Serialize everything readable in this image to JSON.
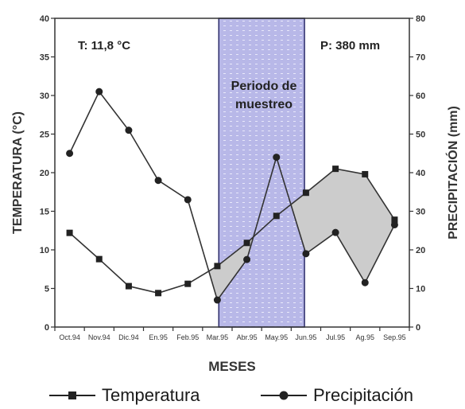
{
  "chart_data": {
    "type": "line",
    "title": "",
    "xlabel": "MESES",
    "ylabel_left": "TEMPERATURA (°C)",
    "ylabel_right": "PRECIPITACIÓN (mm)",
    "categories": [
      "Oct.94",
      "Nov.94",
      "Dic.94",
      "En.95",
      "Feb.95",
      "Mar.95",
      "Abr.95",
      "May.95",
      "Jun.95",
      "Jul.95",
      "Ag.95",
      "Sep.95"
    ],
    "ylim_left": [
      0,
      40
    ],
    "yticks_left": [
      "0",
      "5",
      "10",
      "15",
      "20",
      "25",
      "30",
      "35",
      "40"
    ],
    "ylim_right": [
      0,
      80
    ],
    "yticks_right": [
      "0",
      "10",
      "20",
      "30",
      "40",
      "50",
      "60",
      "70",
      "80"
    ],
    "series": [
      {
        "name": "Temperatura",
        "axis": "left",
        "marker": "square",
        "values": [
          12.2,
          8.8,
          5.3,
          4.4,
          5.6,
          7.9,
          10.9,
          14.4,
          17.4,
          20.5,
          19.8,
          13.9
        ]
      },
      {
        "name": "Precipitación",
        "axis": "right",
        "marker": "circle",
        "values": [
          45,
          61,
          51,
          38,
          33,
          7,
          17.5,
          44,
          19,
          24.5,
          11.5,
          26.5
        ]
      }
    ],
    "annotations": {
      "temp_summary": "T: 11,8 °C",
      "precip_summary": "P: 380 mm",
      "sampling_period_label_1": "Periodo de",
      "sampling_period_label_2": "muestreo",
      "sampling_period_range": [
        "Mar.95",
        "Jun.95"
      ]
    },
    "grid": false,
    "legend_position": "bottom",
    "colors": {
      "line": "#333333",
      "band": "#b8b8e8",
      "band_border": "#2a2a6a",
      "deficit_fill": "#cccccc"
    }
  }
}
